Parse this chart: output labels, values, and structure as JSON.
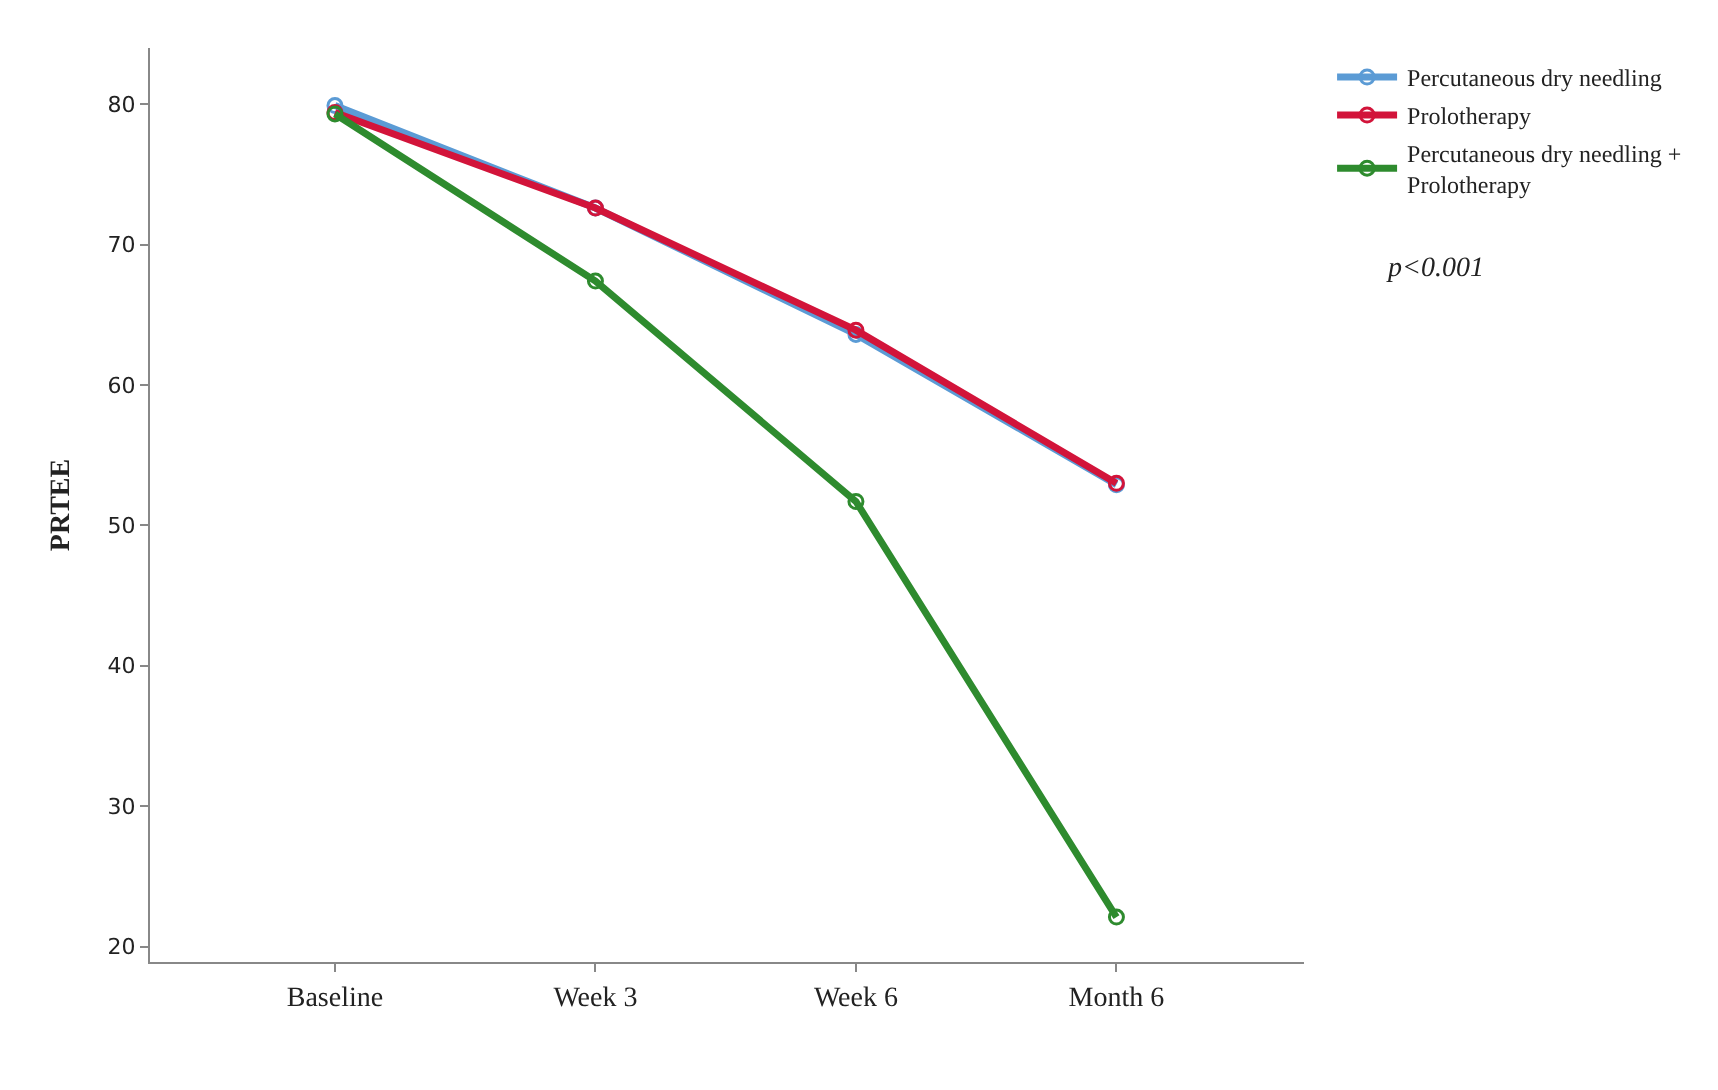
{
  "chart_data": {
    "type": "line",
    "ylabel": "PRTEE",
    "categories": [
      "Baseline",
      "Week 3",
      "Week 6",
      "Month 6"
    ],
    "series": [
      {
        "name": "Percutaneous dry needling",
        "color": "#5b9bd5",
        "values": [
          79.9,
          72.6,
          63.6,
          52.9
        ]
      },
      {
        "name": "Prolotherapy",
        "color": "#d2143a",
        "values": [
          79.4,
          72.6,
          63.9,
          53.0
        ]
      },
      {
        "name": "Percutaneous dry needling + Prolotherapy",
        "color": "#2e8b2e",
        "values": [
          79.3,
          67.4,
          51.7,
          22.1
        ]
      }
    ],
    "ylim": [
      18.9,
      84
    ],
    "yticks": [
      20,
      30,
      40,
      50,
      60,
      70,
      80
    ],
    "annotations": [
      "p<0.001"
    ],
    "legend": "top right",
    "marker": "circle",
    "line_style": "solid"
  }
}
